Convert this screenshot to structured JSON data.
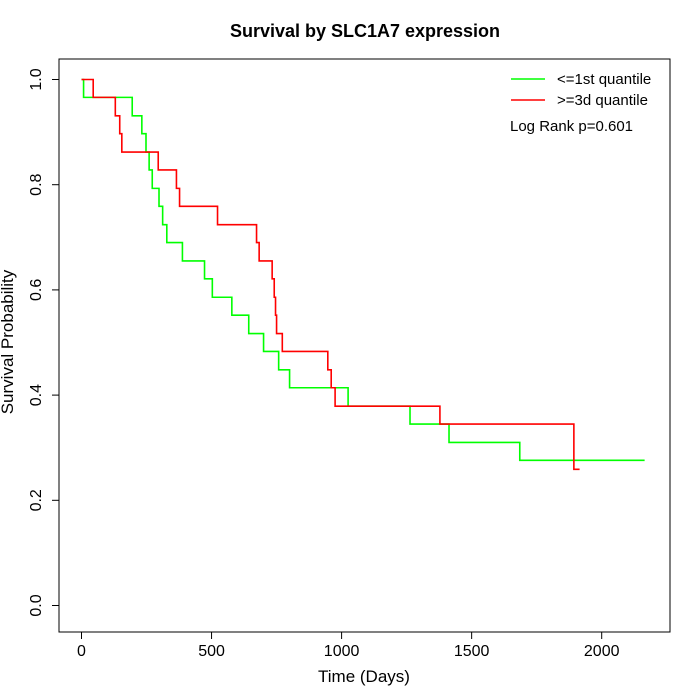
{
  "chart_data": {
    "type": "line",
    "title": "Survival by SLC1A7 expression",
    "xlabel": "Time (Days)",
    "ylabel": "Survival Probability",
    "xlim": [
      0,
      2200
    ],
    "ylim": [
      0,
      1
    ],
    "x_ticks": [
      0,
      500,
      1000,
      1500,
      2000
    ],
    "y_ticks": [
      0.0,
      0.2,
      0.4,
      0.6,
      0.8,
      1.0
    ],
    "x_tick_labels": [
      "0",
      "500",
      "1000",
      "1500",
      "2000"
    ],
    "y_tick_labels": [
      "0.0",
      "0.2",
      "0.4",
      "0.6",
      "0.8",
      "1.0"
    ],
    "grid": false,
    "legend_position": "top-right",
    "annotation": "Log Rank p=0.601",
    "series": [
      {
        "name": "<=1st quantile",
        "color": "#00ff00",
        "points": [
          [
            0,
            1.0
          ],
          [
            8,
            0.966
          ],
          [
            195,
            0.931
          ],
          [
            232,
            0.897
          ],
          [
            248,
            0.862
          ],
          [
            260,
            0.828
          ],
          [
            272,
            0.793
          ],
          [
            298,
            0.759
          ],
          [
            312,
            0.724
          ],
          [
            328,
            0.69
          ],
          [
            388,
            0.655
          ],
          [
            473,
            0.621
          ],
          [
            503,
            0.586
          ],
          [
            578,
            0.552
          ],
          [
            643,
            0.517
          ],
          [
            700,
            0.483
          ],
          [
            758,
            0.448
          ],
          [
            800,
            0.414
          ],
          [
            1025,
            0.379
          ],
          [
            1263,
            0.345
          ],
          [
            1413,
            0.31
          ],
          [
            1685,
            0.276
          ],
          [
            2165,
            0.276
          ]
        ]
      },
      {
        "name": ">=3d quantile",
        "color": "#ff0000",
        "points": [
          [
            0,
            1.0
          ],
          [
            45,
            0.966
          ],
          [
            130,
            0.931
          ],
          [
            147,
            0.897
          ],
          [
            155,
            0.862
          ],
          [
            295,
            0.828
          ],
          [
            365,
            0.793
          ],
          [
            377,
            0.759
          ],
          [
            523,
            0.724
          ],
          [
            673,
            0.69
          ],
          [
            683,
            0.655
          ],
          [
            733,
            0.621
          ],
          [
            741,
            0.586
          ],
          [
            746,
            0.552
          ],
          [
            750,
            0.517
          ],
          [
            772,
            0.483
          ],
          [
            947,
            0.448
          ],
          [
            960,
            0.414
          ],
          [
            975,
            0.379
          ],
          [
            1378,
            0.345
          ],
          [
            1893,
            0.259
          ],
          [
            1915,
            0.259
          ]
        ]
      }
    ]
  }
}
